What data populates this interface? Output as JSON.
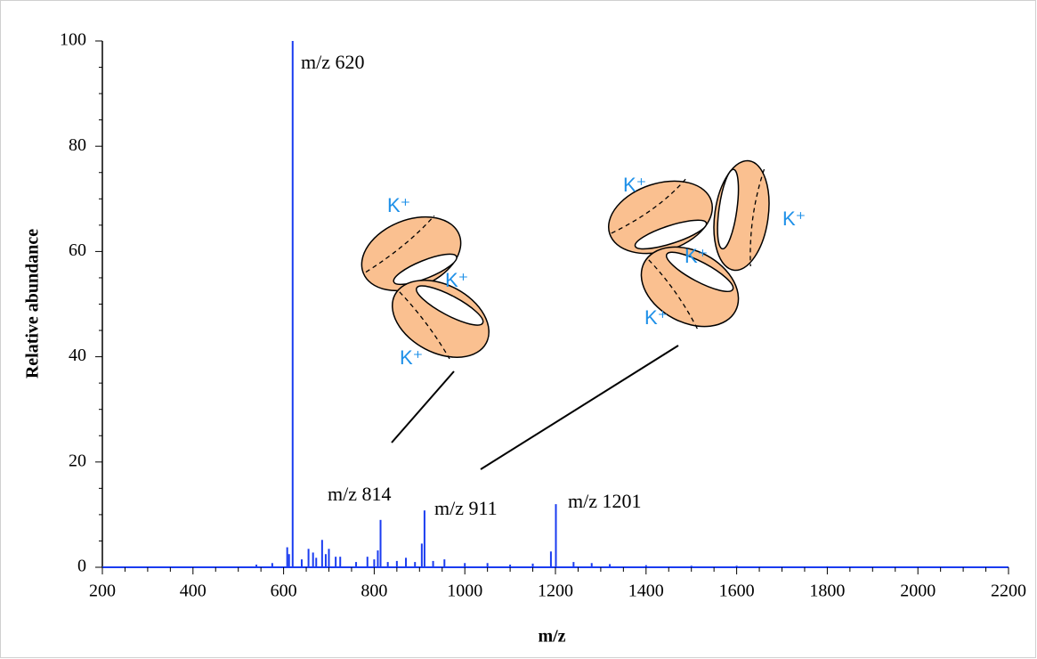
{
  "chart_data": {
    "type": "stem",
    "x_label": "m/z",
    "y_label": "Relative abundance",
    "x": [
      540,
      575,
      608,
      612,
      620,
      640,
      655,
      665,
      672,
      685,
      693,
      700,
      715,
      725,
      760,
      785,
      800,
      808,
      814,
      830,
      850,
      870,
      890,
      905,
      911,
      930,
      955,
      1000,
      1050,
      1100,
      1150,
      1190,
      1201,
      1240,
      1280,
      1320,
      1400,
      1500,
      1600,
      1800
    ],
    "values": [
      0.5,
      0.8,
      3.8,
      2.5,
      100,
      1.5,
      3.5,
      2.8,
      1.8,
      5.2,
      2.5,
      3.5,
      2,
      2,
      1,
      2,
      1.5,
      3.2,
      9,
      1,
      1.2,
      1.8,
      1,
      4.5,
      10.8,
      1.2,
      1.5,
      0.8,
      0.8,
      0.5,
      0.7,
      3,
      12,
      1,
      0.8,
      0.6,
      0.4,
      0.3,
      0.3,
      0.2
    ],
    "color": "#1a3cf0",
    "xlim": [
      200,
      2200
    ],
    "ylim": [
      0,
      100
    ],
    "xticks": [
      200,
      400,
      600,
      800,
      1000,
      1200,
      1400,
      1600,
      1800,
      2000,
      2200
    ],
    "yticks": [
      0,
      20,
      40,
      60,
      80,
      100
    ],
    "xminorticks": [
      250,
      300,
      350,
      450,
      500,
      550,
      650,
      700,
      750,
      850,
      900,
      950,
      1050,
      1100,
      1150,
      1250,
      1300,
      1350,
      1450,
      1500,
      1550,
      1650,
      1700,
      1750,
      1850,
      1900,
      1950,
      2050,
      2100,
      2150
    ],
    "yminorticks": [
      5,
      10,
      15,
      25,
      30,
      35,
      45,
      50,
      55,
      65,
      70,
      75,
      85,
      90,
      95
    ],
    "annotations": [
      "m/z 620",
      "m/z 814",
      "m/z 911",
      "m/z 1201"
    ],
    "ion_labels": [
      "K⁺",
      "K⁺",
      "K⁺",
      "K⁺",
      "K⁺",
      "K⁺",
      "K⁺"
    ]
  }
}
